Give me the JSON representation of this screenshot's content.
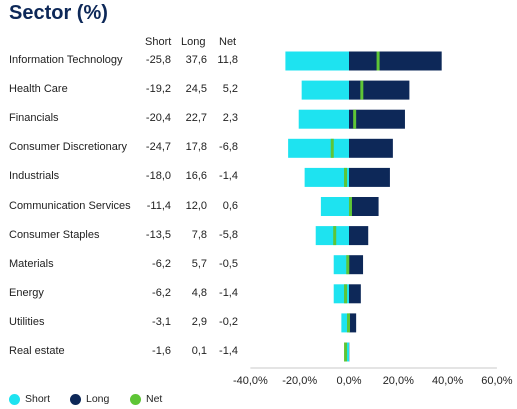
{
  "title": "Sector (%)",
  "columns": {
    "short": "Short",
    "long": "Long",
    "net": "Net"
  },
  "colors": {
    "short": "#1ee3f0",
    "long": "#0d2858",
    "net": "#5ec536",
    "axis": "#c8c8c8"
  },
  "chart_data": {
    "type": "bar",
    "orientation": "horizontal",
    "stacked": true,
    "categories": [
      "Information Technology",
      "Health Care",
      "Financials",
      "Consumer Discretionary",
      "Industrials",
      "Communication Services",
      "Consumer Staples",
      "Materials",
      "Energy",
      "Utilities",
      "Real estate"
    ],
    "series": [
      {
        "name": "Short",
        "values": [
          -25.8,
          -19.2,
          -20.4,
          -24.7,
          -18.0,
          -11.4,
          -13.5,
          -6.2,
          -6.2,
          -3.1,
          -1.6
        ]
      },
      {
        "name": "Long",
        "values": [
          37.6,
          24.5,
          22.7,
          17.8,
          16.6,
          12.0,
          7.8,
          5.7,
          4.8,
          2.9,
          0.1
        ]
      },
      {
        "name": "Net",
        "values": [
          11.8,
          5.2,
          2.3,
          -6.8,
          -1.4,
          0.6,
          -5.8,
          -0.5,
          -1.4,
          -0.2,
          -1.4
        ]
      }
    ],
    "value_labels": {
      "short": [
        "-25,8",
        "-19,2",
        "-20,4",
        "-24,7",
        "-18,0",
        "-11,4",
        "-13,5",
        "-6,2",
        "-6,2",
        "-3,1",
        "-1,6"
      ],
      "long": [
        "37,6",
        "24,5",
        "22,7",
        "17,8",
        "16,6",
        "12,0",
        "7,8",
        "5,7",
        "4,8",
        "2,9",
        "0,1"
      ],
      "net": [
        "11,8",
        "5,2",
        "2,3",
        "-6,8",
        "-1,4",
        "0,6",
        "-5,8",
        "-0,5",
        "-1,4",
        "-0,2",
        "-1,4"
      ]
    },
    "xlim": [
      -40,
      60
    ],
    "xticks": [
      -40,
      -20,
      0,
      20,
      40,
      60
    ],
    "xtick_labels": [
      "-40,0%",
      "-20,0%",
      "0,0%",
      "20,0%",
      "40,0%",
      "60,0%"
    ],
    "legend": [
      "Short",
      "Long",
      "Net"
    ],
    "legend_position": "bottom-left",
    "grid": false
  }
}
